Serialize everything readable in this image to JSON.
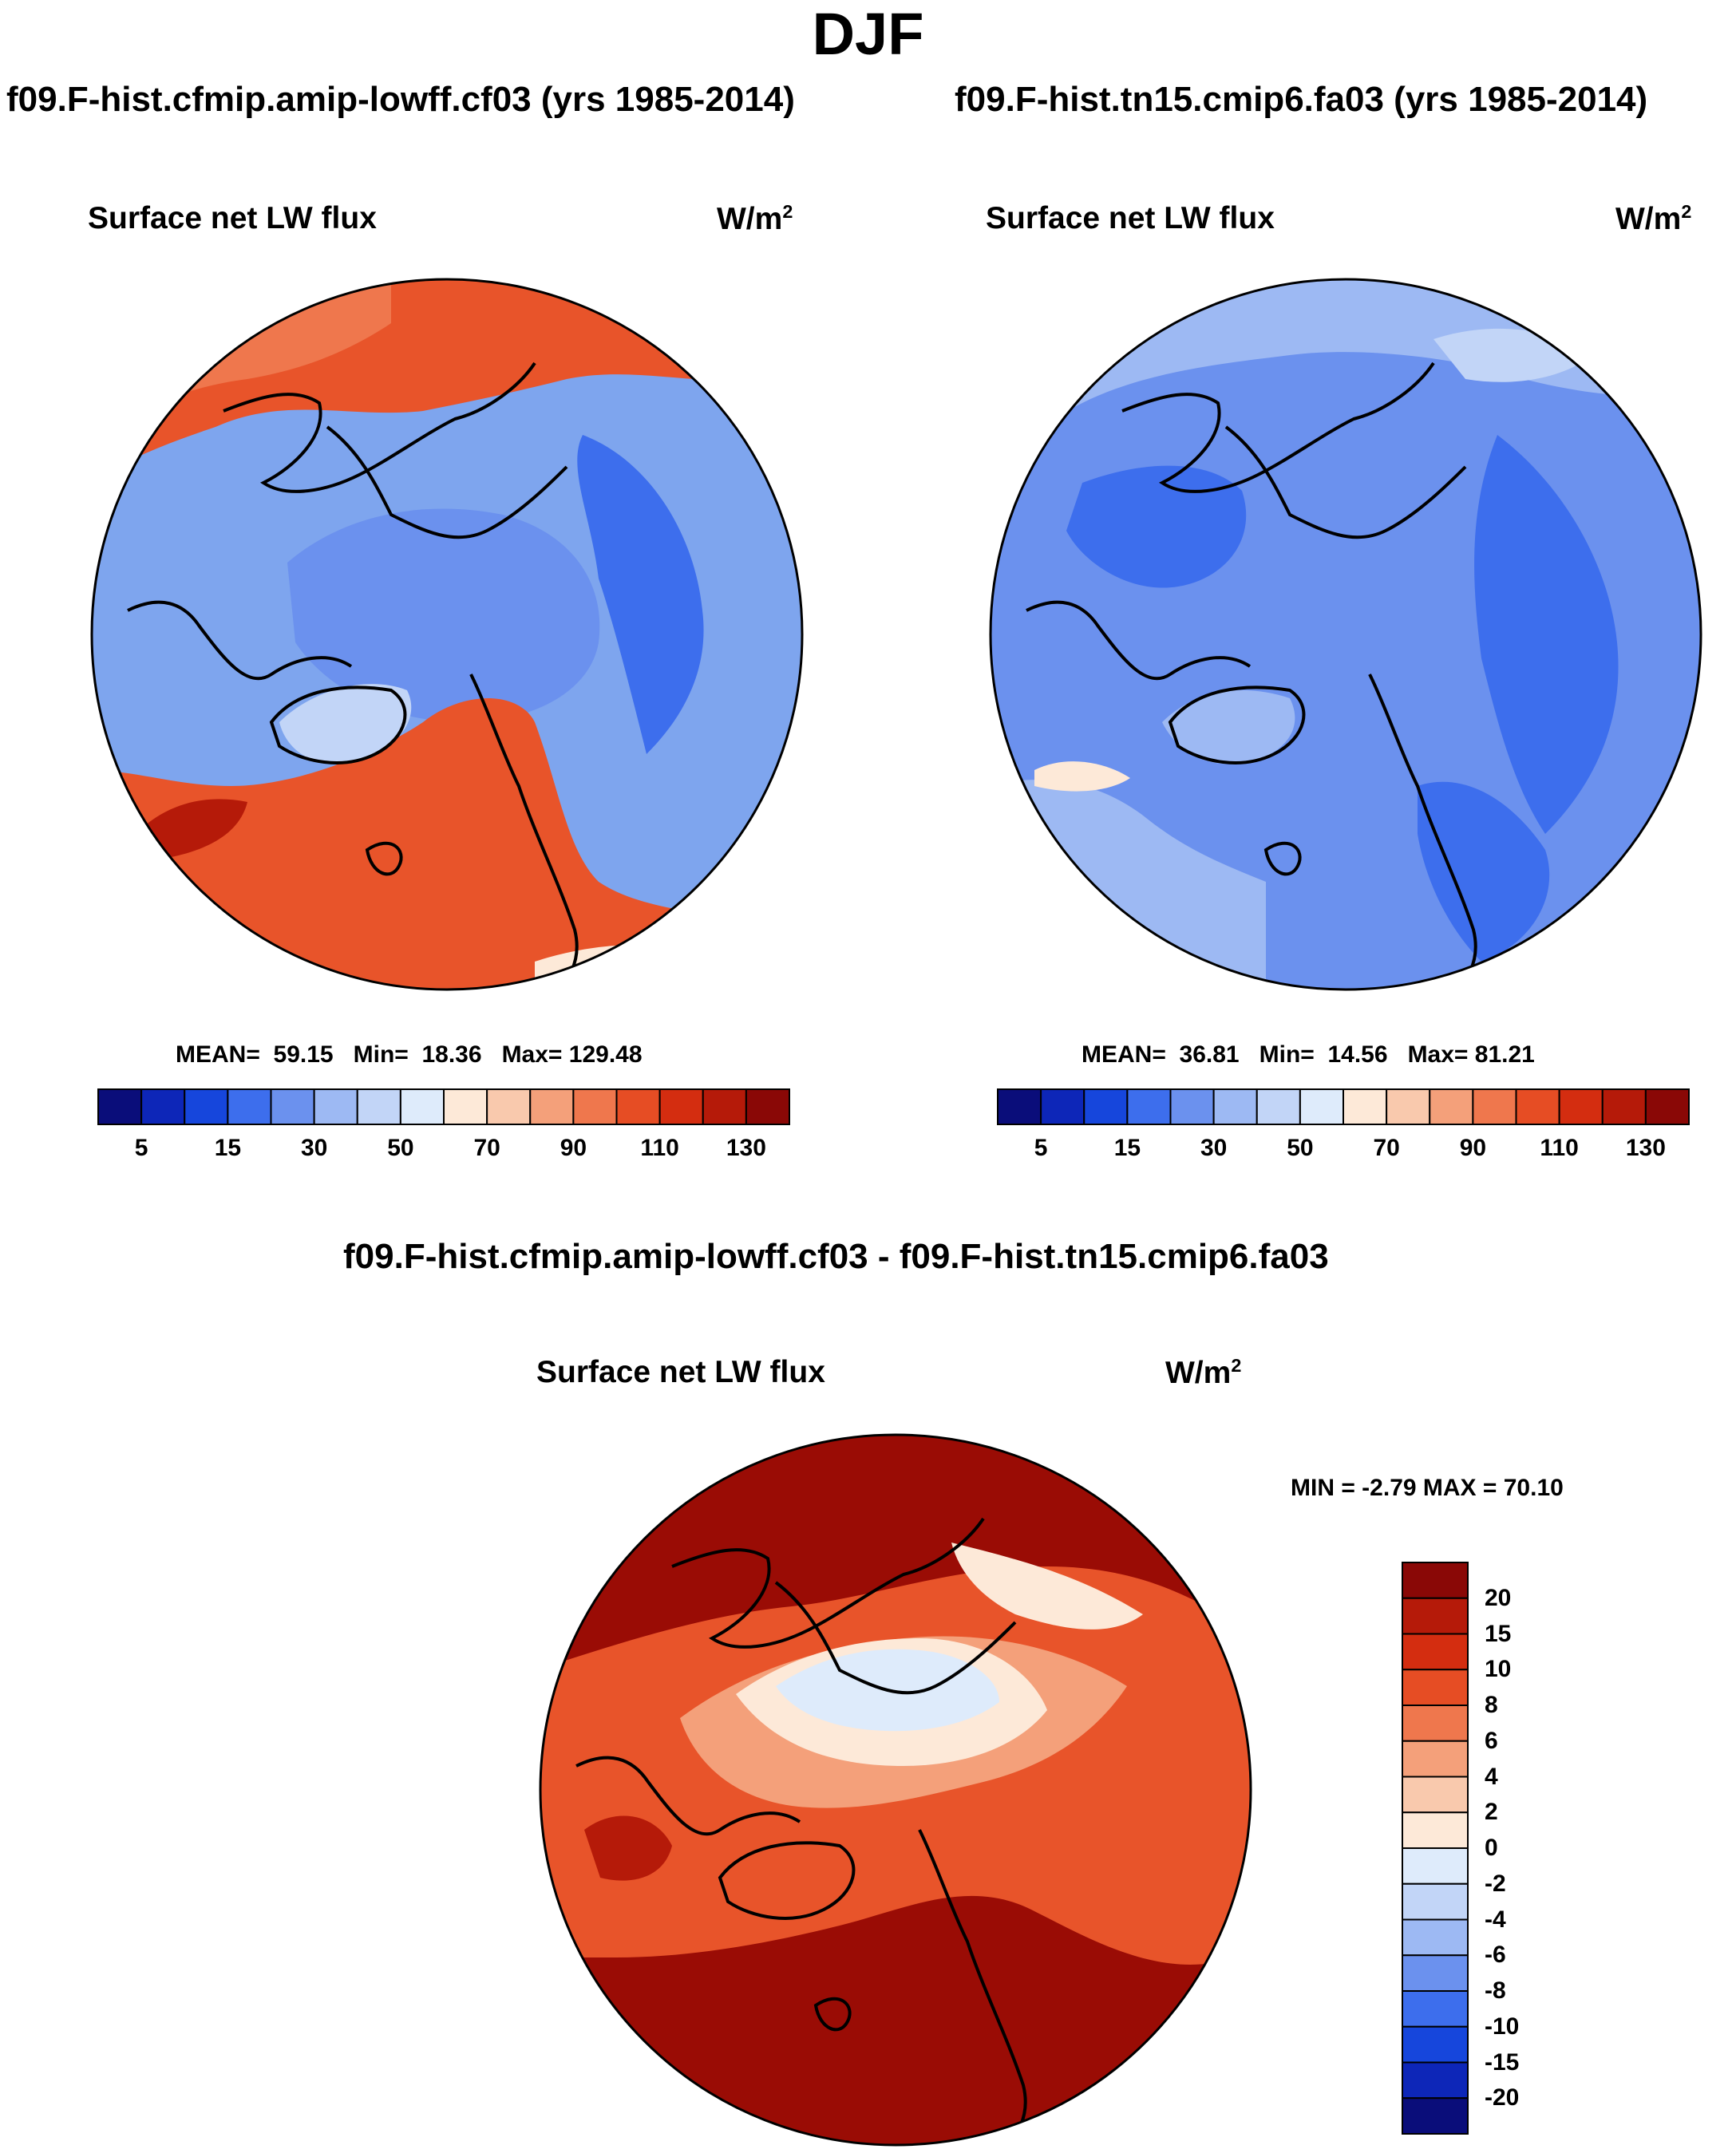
{
  "figure": {
    "title": "DJF",
    "variable_label": "Surface net LW flux",
    "unit_base": "W/m",
    "unit_exp": "2"
  },
  "panels": [
    {
      "case_title": "f09.F-hist.cfmip.amip-lowff.cf03 (yrs 1985-2014)",
      "mean_label": "MEAN=",
      "mean": "59.15",
      "min_label": "Min=",
      "min": "18.36",
      "max_label": "Max=",
      "max": "129.48"
    },
    {
      "case_title": "f09.F-hist.tn15.cmip6.fa03 (yrs 1985-2014)",
      "mean_label": "MEAN=",
      "mean": "36.81",
      "min_label": "Min=",
      "min": "14.56",
      "max_label": "Max=",
      "max": "81.21"
    }
  ],
  "difference": {
    "title": "f09.F-hist.cfmip.amip-lowff.cf03 - f09.F-hist.tn15.cmip6.fa03",
    "minmax_label": "MIN =  -2.79 MAX =  70.10"
  },
  "colorbar_top": {
    "tick_labels": [
      "5",
      "15",
      "30",
      "50",
      "70",
      "90",
      "110",
      "130"
    ],
    "colors": [
      "#0a0d7a",
      "#0d26b8",
      "#1646dc",
      "#3d6eed",
      "#6b91ee",
      "#9db9f3",
      "#c2d5f7",
      "#deebfb",
      "#fde9d8",
      "#f9c9ad",
      "#f4a07a",
      "#ef774d",
      "#e64d24",
      "#d42d10",
      "#b51a09",
      "#8a0806"
    ]
  },
  "colorbar_diff": {
    "tick_labels": [
      "20",
      "15",
      "10",
      "8",
      "6",
      "4",
      "2",
      "0",
      "-2",
      "-4",
      "-6",
      "-8",
      "-10",
      "-15",
      "-20"
    ],
    "colors": [
      "#8a0806",
      "#b51a09",
      "#d42d10",
      "#e64d24",
      "#ef774d",
      "#f4a07a",
      "#f9c9ad",
      "#fde9d8",
      "#deebfb",
      "#c2d5f7",
      "#9db9f3",
      "#6b91ee",
      "#3d6eed",
      "#1646dc",
      "#0d26b8",
      "#0a0d7a"
    ]
  },
  "map_fill": {
    "left_warm": "#e8542a",
    "left_cold": "#7ea5ee",
    "right_cold": "#5b86e8",
    "diff_warm": "#9a0c05"
  }
}
